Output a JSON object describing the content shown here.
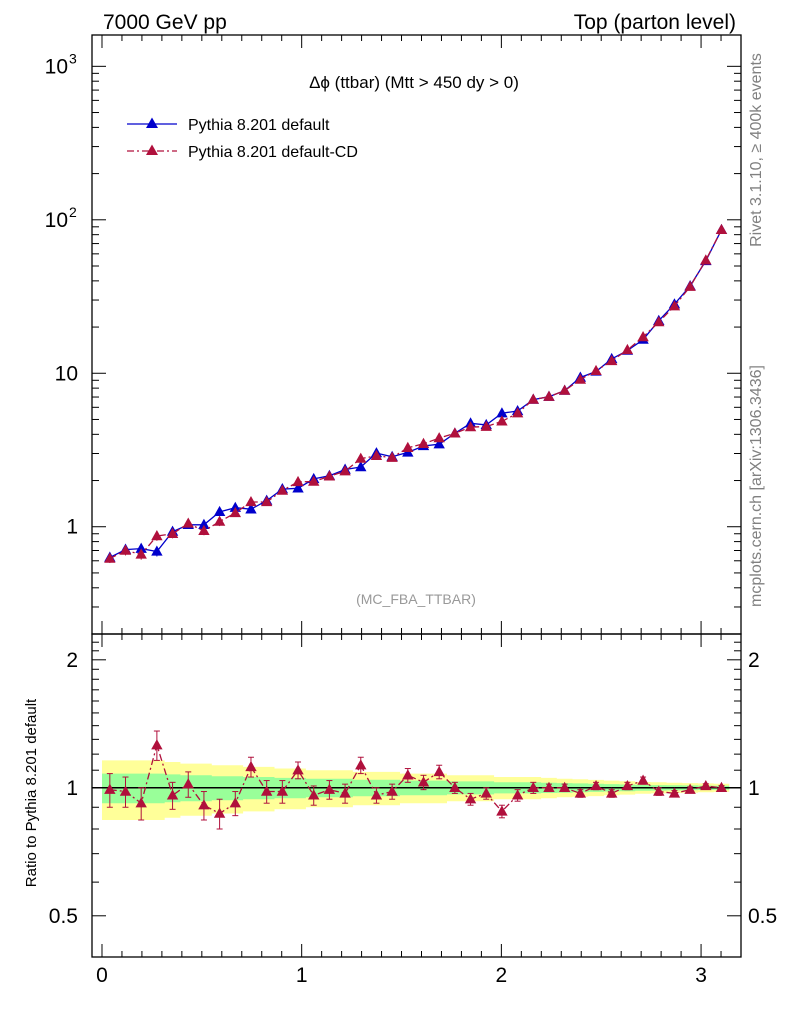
{
  "header": {
    "left": "7000 GeV pp",
    "right": "Top (parton level)"
  },
  "side_labels": {
    "rivet": "Rivet 3.1.10, ≥ 400k events",
    "mcplots": "mcplots.cern.ch [arXiv:1306.3436]"
  },
  "chart_data": {
    "type": "line",
    "title": "Δϕ (ttbar) (Mtt > 450 dy > 0)",
    "analysis_label": "(MC_FBA_TTBAR)",
    "y_scale": "log",
    "ylim": [
      0.2,
      1600
    ],
    "xlim": [
      -0.05,
      3.2
    ],
    "x_ticks": [
      {
        "v": 0,
        "label": "0"
      },
      {
        "v": 1,
        "label": "1"
      },
      {
        "v": 2,
        "label": "2"
      },
      {
        "v": 3,
        "label": "3"
      }
    ],
    "y_ticks": [
      {
        "v": 1,
        "label": "1"
      },
      {
        "v": 10,
        "label": "10"
      },
      {
        "v": 100,
        "label": "10",
        "exp": "2"
      },
      {
        "v": 1000,
        "label": "10",
        "exp": "3"
      }
    ],
    "legend": {
      "position": "top-left"
    },
    "x": [
      0.0393,
      0.1178,
      0.1963,
      0.2749,
      0.3534,
      0.432,
      0.5105,
      0.589,
      0.6676,
      0.7461,
      0.8247,
      0.9032,
      0.9817,
      1.0603,
      1.1388,
      1.2174,
      1.2959,
      1.3744,
      1.453,
      1.5315,
      1.6101,
      1.6886,
      1.7671,
      1.8457,
      1.9242,
      2.0028,
      2.0813,
      2.1598,
      2.2384,
      2.3169,
      2.3955,
      2.474,
      2.5525,
      2.6311,
      2.7096,
      2.7882,
      2.8667,
      2.9452,
      3.0238,
      3.1023
    ],
    "series": [
      {
        "name": "Pythia 8.201 default",
        "color": "#0000cc",
        "marker": "triangle",
        "line": "solid",
        "values": [
          0.63,
          0.71,
          0.72,
          0.69,
          0.93,
          1.03,
          1.03,
          1.25,
          1.33,
          1.3,
          1.48,
          1.76,
          1.78,
          2.05,
          2.15,
          2.36,
          2.45,
          3.02,
          2.86,
          3.05,
          3.36,
          3.45,
          4.06,
          4.72,
          4.61,
          5.49,
          5.68,
          6.74,
          7.04,
          7.71,
          9.38,
          10.27,
          12.41,
          14.06,
          16.57,
          21.99,
          28.18,
          37.04,
          54.0,
          86.0
        ],
        "errors": [
          0.04,
          0.05,
          0.05,
          0.05,
          0.06,
          0.06,
          0.06,
          0.07,
          0.07,
          0.07,
          0.07,
          0.08,
          0.08,
          0.09,
          0.09,
          0.09,
          0.1,
          0.11,
          0.1,
          0.11,
          0.12,
          0.12,
          0.13,
          0.14,
          0.14,
          0.15,
          0.15,
          0.17,
          0.17,
          0.18,
          0.2,
          0.21,
          0.24,
          0.26,
          0.29,
          0.36,
          0.44,
          0.55,
          0.75,
          1.1
        ]
      },
      {
        "name": "Pythia 8.201 default-CD",
        "color": "#b0103c",
        "marker": "triangle",
        "line": "dashdot",
        "values": [
          0.62,
          0.7,
          0.66,
          0.87,
          0.9,
          1.05,
          0.94,
          1.08,
          1.23,
          1.45,
          1.45,
          1.72,
          1.96,
          1.97,
          2.13,
          2.3,
          2.78,
          2.9,
          2.82,
          3.27,
          3.47,
          3.78,
          4.06,
          4.46,
          4.49,
          4.86,
          5.49,
          6.74,
          7.04,
          7.71,
          9.1,
          10.37,
          12.04,
          14.2,
          17.23,
          21.55,
          27.34,
          36.67,
          54.5,
          86.0
        ],
        "errors": [
          0.04,
          0.05,
          0.05,
          0.06,
          0.06,
          0.06,
          0.06,
          0.07,
          0.07,
          0.08,
          0.08,
          0.08,
          0.09,
          0.09,
          0.09,
          0.1,
          0.11,
          0.11,
          0.11,
          0.12,
          0.12,
          0.13,
          0.13,
          0.14,
          0.14,
          0.15,
          0.16,
          0.17,
          0.17,
          0.18,
          0.2,
          0.21,
          0.24,
          0.26,
          0.3,
          0.36,
          0.44,
          0.55,
          0.75,
          1.1
        ]
      }
    ],
    "ratio": {
      "ylabel": "Ratio to Pythia 8.201 default",
      "ylim": [
        0.4,
        2.3
      ],
      "y_scale": "log",
      "y_ticks": [
        {
          "v": 0.5,
          "label": "0.5"
        },
        {
          "v": 1,
          "label": "1"
        },
        {
          "v": 2,
          "label": "2"
        }
      ],
      "band_colors": {
        "inner": "#99ff99",
        "outer": "#ffff99"
      },
      "band_inner_halfwidth": [
        0.08,
        0.08,
        0.08,
        0.08,
        0.075,
        0.07,
        0.07,
        0.065,
        0.065,
        0.06,
        0.06,
        0.055,
        0.055,
        0.05,
        0.05,
        0.05,
        0.045,
        0.045,
        0.045,
        0.04,
        0.04,
        0.04,
        0.035,
        0.035,
        0.035,
        0.03,
        0.03,
        0.03,
        0.028,
        0.026,
        0.024,
        0.022,
        0.02,
        0.018,
        0.016,
        0.015,
        0.014,
        0.013,
        0.012,
        0.011
      ],
      "band_outer_halfwidth": [
        0.16,
        0.16,
        0.16,
        0.16,
        0.15,
        0.14,
        0.14,
        0.13,
        0.13,
        0.12,
        0.12,
        0.11,
        0.11,
        0.1,
        0.1,
        0.1,
        0.09,
        0.09,
        0.09,
        0.08,
        0.08,
        0.08,
        0.07,
        0.07,
        0.07,
        0.06,
        0.06,
        0.06,
        0.055,
        0.05,
        0.047,
        0.044,
        0.04,
        0.036,
        0.032,
        0.03,
        0.028,
        0.026,
        0.024,
        0.022
      ],
      "values": [
        0.99,
        0.98,
        0.92,
        1.26,
        0.96,
        1.02,
        0.91,
        0.87,
        0.92,
        1.12,
        0.98,
        0.98,
        1.1,
        0.96,
        0.99,
        0.97,
        1.13,
        0.96,
        0.98,
        1.07,
        1.03,
        1.09,
        1.0,
        0.94,
        0.97,
        0.88,
        0.96,
        1.0,
        1.0,
        1.0,
        0.97,
        1.01,
        0.97,
        1.01,
        1.04,
        0.98,
        0.97,
        0.99,
        1.01,
        1.0
      ],
      "errors": [
        0.09,
        0.08,
        0.08,
        0.1,
        0.07,
        0.07,
        0.07,
        0.07,
        0.06,
        0.06,
        0.06,
        0.06,
        0.05,
        0.05,
        0.05,
        0.05,
        0.05,
        0.04,
        0.04,
        0.04,
        0.04,
        0.04,
        0.03,
        0.03,
        0.03,
        0.03,
        0.03,
        0.03,
        0.02,
        0.02,
        0.02,
        0.02,
        0.02,
        0.02,
        0.02,
        0.02,
        0.015,
        0.015,
        0.012,
        0.012
      ]
    }
  }
}
